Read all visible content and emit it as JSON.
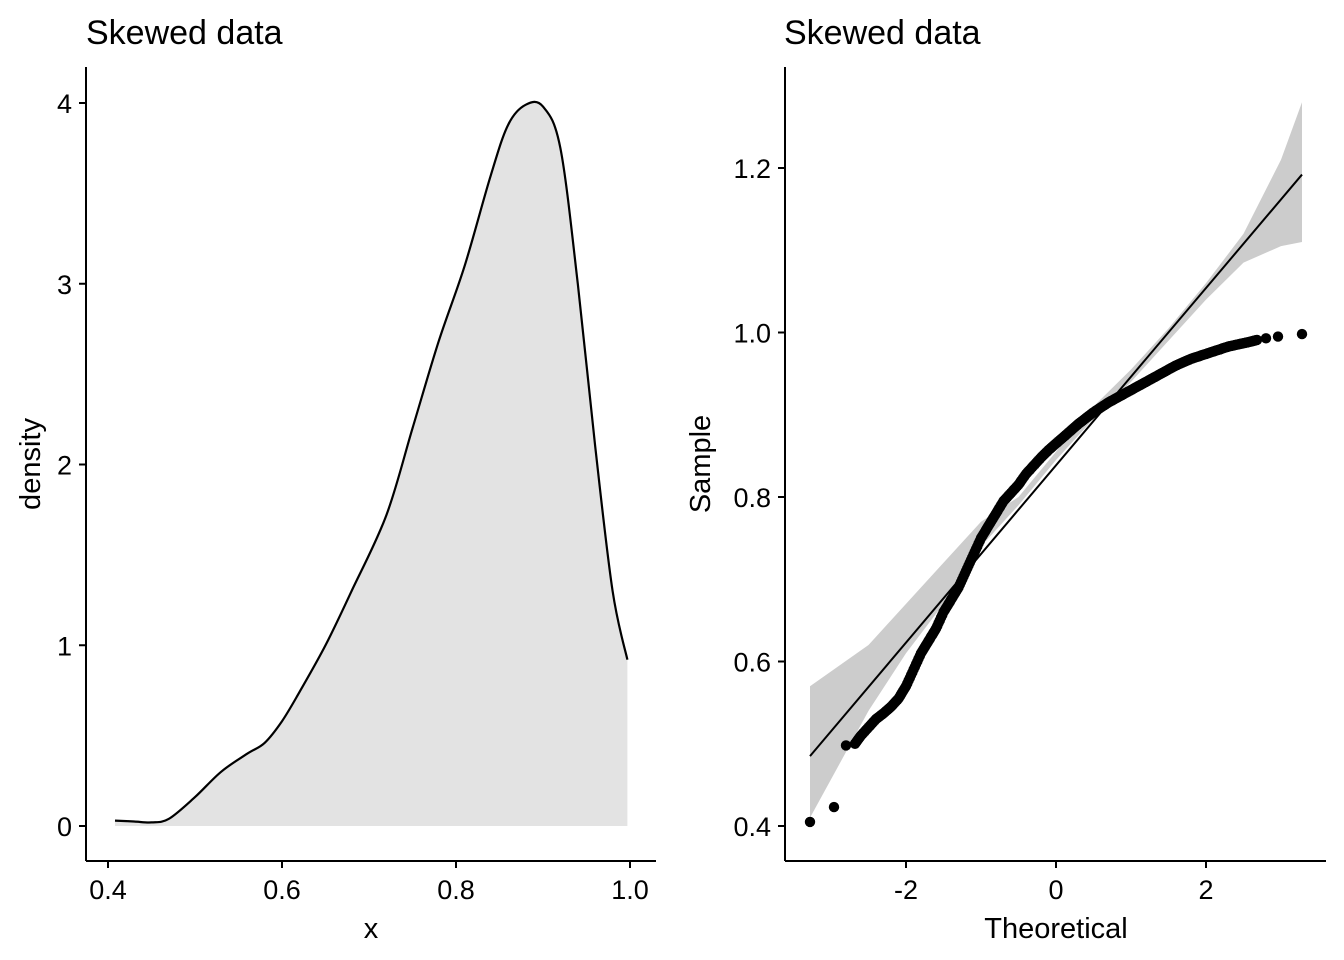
{
  "chart_data": [
    {
      "type": "area",
      "title": "Skewed data",
      "xlabel": "x",
      "ylabel": "density",
      "xlim": [
        0.4,
        1.0
      ],
      "ylim": [
        0,
        4.2
      ],
      "xticks": [
        0.4,
        0.6,
        0.8,
        1.0
      ],
      "xtick_labels": [
        "0.4",
        "0.6",
        "0.8",
        "1.0"
      ],
      "yticks": [
        0,
        1,
        2,
        3,
        4
      ],
      "ytick_labels": [
        "0",
        "1",
        "2",
        "3",
        "4"
      ],
      "grid": false,
      "fill_color": "#e3e3e3",
      "line_color": "#000000",
      "x": [
        0.408,
        0.43,
        0.45,
        0.47,
        0.5,
        0.53,
        0.56,
        0.58,
        0.6,
        0.62,
        0.65,
        0.68,
        0.72,
        0.75,
        0.78,
        0.81,
        0.84,
        0.86,
        0.88,
        0.9,
        0.92,
        0.94,
        0.96,
        0.98,
        0.997
      ],
      "density": [
        0.03,
        0.025,
        0.02,
        0.04,
        0.16,
        0.3,
        0.4,
        0.46,
        0.58,
        0.74,
        1.0,
        1.3,
        1.72,
        2.2,
        2.68,
        3.1,
        3.6,
        3.88,
        3.99,
        3.98,
        3.75,
        3.0,
        2.1,
        1.3,
        0.92
      ]
    },
    {
      "type": "scatter",
      "title": "Skewed data",
      "xlabel": "Theoretical",
      "ylabel": "Sample",
      "xlim": [
        -3.6,
        3.6
      ],
      "ylim": [
        0.38,
        1.33
      ],
      "xticks": [
        -2,
        0,
        2
      ],
      "xtick_labels": [
        "-2",
        "0",
        "2"
      ],
      "yticks": [
        0.4,
        0.6,
        0.8,
        1.0,
        1.2
      ],
      "ytick_labels": [
        "0.4",
        "0.6",
        "0.8",
        "1.0",
        "1.2"
      ],
      "grid": false,
      "point_color": "#000000",
      "band_color": "#cccccc",
      "qq_line": {
        "x": [
          -3.28,
          3.28
        ],
        "y": [
          0.485,
          1.192
        ]
      },
      "confidence_band": {
        "x": [
          -3.28,
          -2.5,
          -2.0,
          -1.5,
          -1.0,
          -0.5,
          0.0,
          0.5,
          1.0,
          1.5,
          2.0,
          2.5,
          3.0,
          3.28
        ],
        "lower": [
          0.41,
          0.54,
          0.61,
          0.67,
          0.74,
          0.79,
          0.845,
          0.895,
          0.94,
          0.99,
          1.04,
          1.085,
          1.105,
          1.11
        ],
        "upper": [
          0.57,
          0.62,
          0.67,
          0.72,
          0.77,
          0.8,
          0.855,
          0.91,
          0.955,
          1.005,
          1.06,
          1.12,
          1.21,
          1.28
        ]
      },
      "points": {
        "theoretical": [
          -3.28,
          -2.96,
          -2.8,
          -2.68,
          -2.6,
          -2.5,
          -2.4,
          -2.3,
          -2.2,
          -2.1,
          -2.0,
          -1.9,
          -1.8,
          -1.7,
          -1.6,
          -1.5,
          -1.4,
          -1.3,
          -1.2,
          -1.1,
          -1.0,
          -0.9,
          -0.8,
          -0.7,
          -0.6,
          -0.5,
          -0.4,
          -0.3,
          -0.2,
          -0.1,
          0.0,
          0.1,
          0.2,
          0.3,
          0.4,
          0.5,
          0.6,
          0.7,
          0.8,
          0.9,
          1.0,
          1.1,
          1.2,
          1.3,
          1.4,
          1.5,
          1.6,
          1.7,
          1.8,
          1.9,
          2.0,
          2.1,
          2.2,
          2.3,
          2.4,
          2.5,
          2.6,
          2.68,
          2.8,
          2.96,
          3.28
        ],
        "sample": [
          0.405,
          0.423,
          0.498,
          0.5,
          0.51,
          0.52,
          0.53,
          0.537,
          0.545,
          0.555,
          0.57,
          0.59,
          0.61,
          0.625,
          0.64,
          0.66,
          0.675,
          0.69,
          0.71,
          0.73,
          0.75,
          0.765,
          0.78,
          0.795,
          0.805,
          0.815,
          0.828,
          0.838,
          0.848,
          0.857,
          0.865,
          0.873,
          0.881,
          0.889,
          0.896,
          0.903,
          0.909,
          0.915,
          0.92,
          0.925,
          0.93,
          0.935,
          0.94,
          0.945,
          0.95,
          0.955,
          0.96,
          0.964,
          0.968,
          0.971,
          0.974,
          0.977,
          0.98,
          0.983,
          0.985,
          0.987,
          0.989,
          0.991,
          0.993,
          0.995,
          0.998
        ]
      }
    }
  ]
}
